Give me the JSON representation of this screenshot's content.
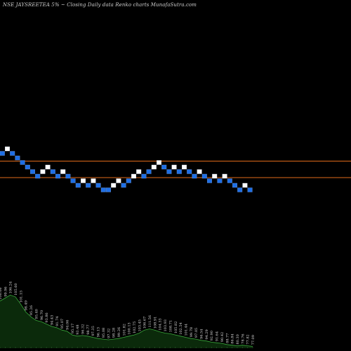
{
  "title": "NSE JAYSREETEA 5% ~  Closing Daily data  Renko  charts MunafaSutra.com",
  "colors": {
    "background": "#000000",
    "up_brick": "#ffffff",
    "down_brick": "#1e6fe6",
    "brick_border": "#6a8fc8",
    "level_line": "#e06a1a",
    "volume_fill": "#0b2a0b",
    "volume_line": "#39a83a",
    "label_text": "#d9d9d9"
  },
  "chart_data": {
    "type": "renko",
    "title": "NSE JAYSREETEA 5% ~  Closing Daily data  Renko  charts MunafaSutra.com",
    "brick_size": "5%",
    "levels": [
      0,
      1.5
    ],
    "bricks": [
      {
        "dir": "down",
        "level": 1
      },
      {
        "dir": "up",
        "level": 2
      },
      {
        "dir": "down",
        "level": 1
      },
      {
        "dir": "down",
        "level": 0
      },
      {
        "dir": "down",
        "level": -1
      },
      {
        "dir": "down",
        "level": -2
      },
      {
        "dir": "down",
        "level": -3
      },
      {
        "dir": "down",
        "level": -4
      },
      {
        "dir": "up",
        "level": -3
      },
      {
        "dir": "up",
        "level": -2
      },
      {
        "dir": "down",
        "level": -3
      },
      {
        "dir": "down",
        "level": -4
      },
      {
        "dir": "up",
        "level": -3
      },
      {
        "dir": "down",
        "level": -4
      },
      {
        "dir": "down",
        "level": -5
      },
      {
        "dir": "down",
        "level": -6
      },
      {
        "dir": "up",
        "level": -5
      },
      {
        "dir": "down",
        "level": -6
      },
      {
        "dir": "up",
        "level": -5
      },
      {
        "dir": "down",
        "level": -6
      },
      {
        "dir": "down",
        "level": -7
      },
      {
        "dir": "down",
        "level": -7
      },
      {
        "dir": "up",
        "level": -6
      },
      {
        "dir": "up",
        "level": -5
      },
      {
        "dir": "down",
        "level": -6
      },
      {
        "dir": "down",
        "level": -5
      },
      {
        "dir": "up",
        "level": -4
      },
      {
        "dir": "up",
        "level": -3
      },
      {
        "dir": "down",
        "level": -4
      },
      {
        "dir": "down",
        "level": -3
      },
      {
        "dir": "up",
        "level": -2
      },
      {
        "dir": "up",
        "level": -1
      },
      {
        "dir": "down",
        "level": -2
      },
      {
        "dir": "down",
        "level": -3
      },
      {
        "dir": "up",
        "level": -2
      },
      {
        "dir": "down",
        "level": -3
      },
      {
        "dir": "up",
        "level": -2
      },
      {
        "dir": "down",
        "level": -3
      },
      {
        "dir": "down",
        "level": -4
      },
      {
        "dir": "up",
        "level": -3
      },
      {
        "dir": "down",
        "level": -4
      },
      {
        "dir": "down",
        "level": -5
      },
      {
        "dir": "up",
        "level": -4
      },
      {
        "dir": "down",
        "level": -5
      },
      {
        "dir": "up",
        "level": -4
      },
      {
        "dir": "down",
        "level": -5
      },
      {
        "dir": "down",
        "level": -6
      },
      {
        "dir": "down",
        "level": -7
      },
      {
        "dir": "up",
        "level": -6
      },
      {
        "dir": "down",
        "level": -7
      }
    ],
    "volume": [
      {
        "value": 0.78,
        "label": "106.06"
      },
      {
        "value": 0.83,
        "label": "99.96"
      },
      {
        "value": 0.88,
        "label": "106.24"
      },
      {
        "value": 0.85,
        "label": "105.60"
      },
      {
        "value": 0.73,
        "label": "101.15"
      },
      {
        "value": 0.6,
        "label": "98.49"
      },
      {
        "value": 0.52,
        "label": "95.26"
      },
      {
        "value": 0.46,
        "label": "95.40"
      },
      {
        "value": 0.44,
        "label": "96.70"
      },
      {
        "value": 0.4,
        "label": "93.86"
      },
      {
        "value": 0.36,
        "label": "94.43"
      },
      {
        "value": 0.34,
        "label": "91.74"
      },
      {
        "value": 0.3,
        "label": "95.07"
      },
      {
        "value": 0.28,
        "label": "94.06"
      },
      {
        "value": 0.22,
        "label": "95.17"
      },
      {
        "value": 0.2,
        "label": "93.48"
      },
      {
        "value": 0.21,
        "label": "96.32"
      },
      {
        "value": 0.2,
        "label": "98.77"
      },
      {
        "value": 0.18,
        "label": "97.35"
      },
      {
        "value": 0.16,
        "label": "96.13"
      },
      {
        "value": 0.15,
        "label": "95.08"
      },
      {
        "value": 0.14,
        "label": "97.32"
      },
      {
        "value": 0.15,
        "label": "98.28"
      },
      {
        "value": 0.16,
        "label": "99.26"
      },
      {
        "value": 0.18,
        "label": "101.82"
      },
      {
        "value": 0.2,
        "label": "100.13"
      },
      {
        "value": 0.22,
        "label": "102.75"
      },
      {
        "value": 0.25,
        "label": "103.45"
      },
      {
        "value": 0.3,
        "label": "106.67"
      },
      {
        "value": 0.32,
        "label": "111.56"
      },
      {
        "value": 0.3,
        "label": "108.91"
      },
      {
        "value": 0.27,
        "label": "104.33"
      },
      {
        "value": 0.25,
        "label": "103.93"
      },
      {
        "value": 0.24,
        "label": "108.71"
      },
      {
        "value": 0.22,
        "label": "105.82"
      },
      {
        "value": 0.2,
        "label": "102.54"
      },
      {
        "value": 0.18,
        "label": "101.44"
      },
      {
        "value": 0.16,
        "label": "99.78"
      },
      {
        "value": 0.15,
        "label": "97.05"
      },
      {
        "value": 0.13,
        "label": "96.54"
      },
      {
        "value": 0.12,
        "label": "94.29"
      },
      {
        "value": 0.1,
        "label": "92.90"
      },
      {
        "value": 0.09,
        "label": "91.64"
      },
      {
        "value": 0.08,
        "label": "90.42"
      },
      {
        "value": 0.06,
        "label": "88.77"
      },
      {
        "value": 0.05,
        "label": "86.84"
      },
      {
        "value": 0.04,
        "label": "80.30"
      },
      {
        "value": 0.05,
        "label": "78.76"
      },
      {
        "value": 0.04,
        "label": "77.82"
      },
      {
        "value": 0.03,
        "label": "77.09"
      }
    ]
  }
}
